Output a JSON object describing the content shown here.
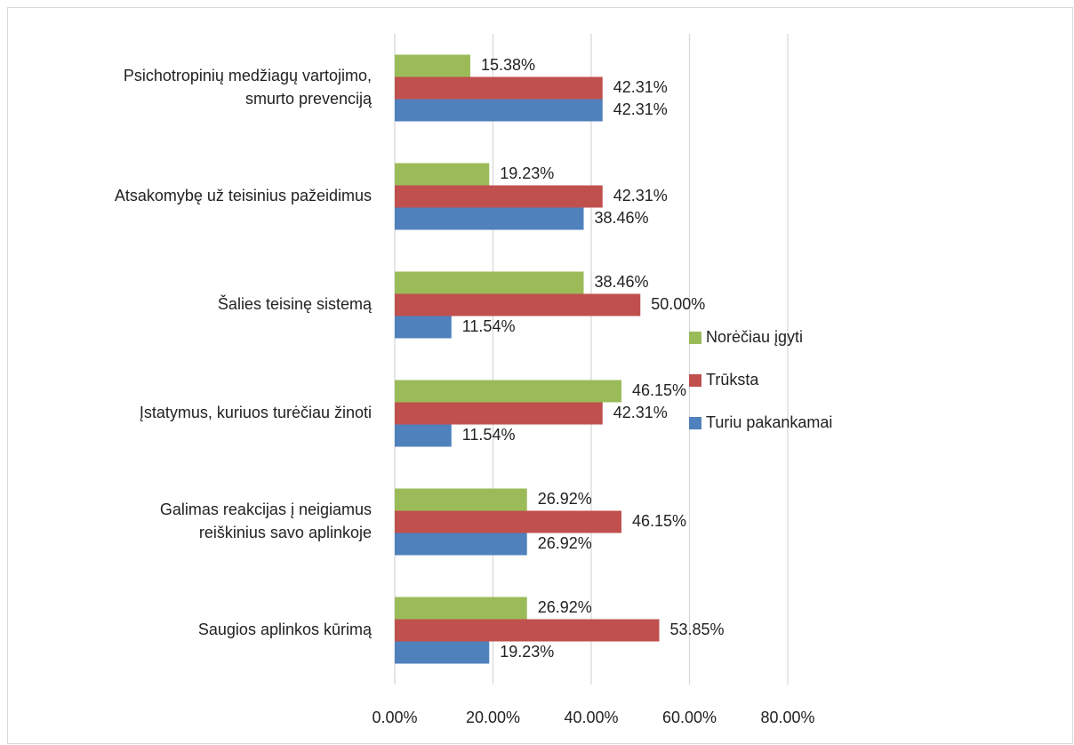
{
  "chart_data": {
    "type": "hbar",
    "categories": [
      "Psichotropinių medžiagų vartojimo,\nsmurto prevenciją",
      "Atsakomybę už teisinius  pažeidimus",
      "Šalies teisinę sistemą",
      "Įstatymus, kuriuos turėčiau žinoti",
      "Galimas reakcijas į neigiamus\nreiškinius savo aplinkoje",
      "Saugios aplinkos kūrimą"
    ],
    "series": [
      {
        "name": "Norėčiau įgyti",
        "color": "#9bbb59",
        "values": [
          15.38,
          19.23,
          38.46,
          46.15,
          26.92,
          26.92
        ],
        "value_labels": [
          "15.38%",
          "19.23%",
          "38.46%",
          "46.15%",
          "26.92%",
          "26.92%"
        ]
      },
      {
        "name": "Trūksta",
        "color": "#c0504d",
        "values": [
          42.31,
          42.31,
          50.0,
          42.31,
          46.15,
          53.85
        ],
        "value_labels": [
          "42.31%",
          "42.31%",
          "50.00%",
          "42.31%",
          "46.15%",
          "53.85%"
        ]
      },
      {
        "name": "Turiu pakankamai",
        "color": "#4f81bd",
        "values": [
          42.31,
          38.46,
          11.54,
          11.54,
          26.92,
          19.23
        ],
        "value_labels": [
          "42.31%",
          "38.46%",
          "11.54%",
          "11.54%",
          "26.92%",
          "19.23%"
        ]
      }
    ],
    "xlim": [
      0,
      80
    ],
    "xticks": [
      {
        "value": 0,
        "label": "0.00%"
      },
      {
        "value": 20,
        "label": "20.00%"
      },
      {
        "value": 40,
        "label": "40.00%"
      },
      {
        "value": 60,
        "label": "60.00%"
      },
      {
        "value": 80,
        "label": "80.00%"
      }
    ],
    "grid": true,
    "legend": "right"
  }
}
